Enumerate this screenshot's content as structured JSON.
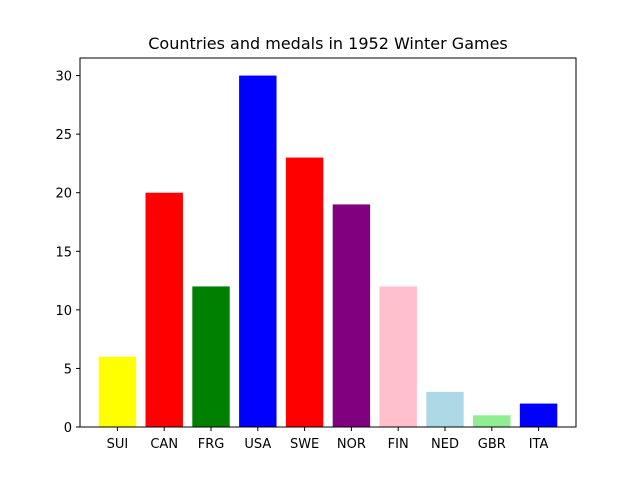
{
  "chart_data": {
    "type": "bar",
    "title": "Countries and medals in 1952 Winter Games",
    "xlabel": "",
    "ylabel": "",
    "categories": [
      "SUI",
      "CAN",
      "FRG",
      "USA",
      "SWE",
      "NOR",
      "FIN",
      "NED",
      "GBR",
      "ITA"
    ],
    "values": [
      6,
      20,
      12,
      30,
      23,
      19,
      12,
      3,
      1,
      2
    ],
    "colors": [
      "#ffff00",
      "#ff0000",
      "#008000",
      "#0000ff",
      "#ff0000",
      "#800080",
      "#ffc0cb",
      "#add8e6",
      "#90ee90",
      "#0000ff"
    ],
    "ylim": [
      0,
      31.5
    ],
    "yticks": [
      0,
      5,
      10,
      15,
      20,
      25,
      30
    ],
    "grid": false,
    "legend": false
  }
}
